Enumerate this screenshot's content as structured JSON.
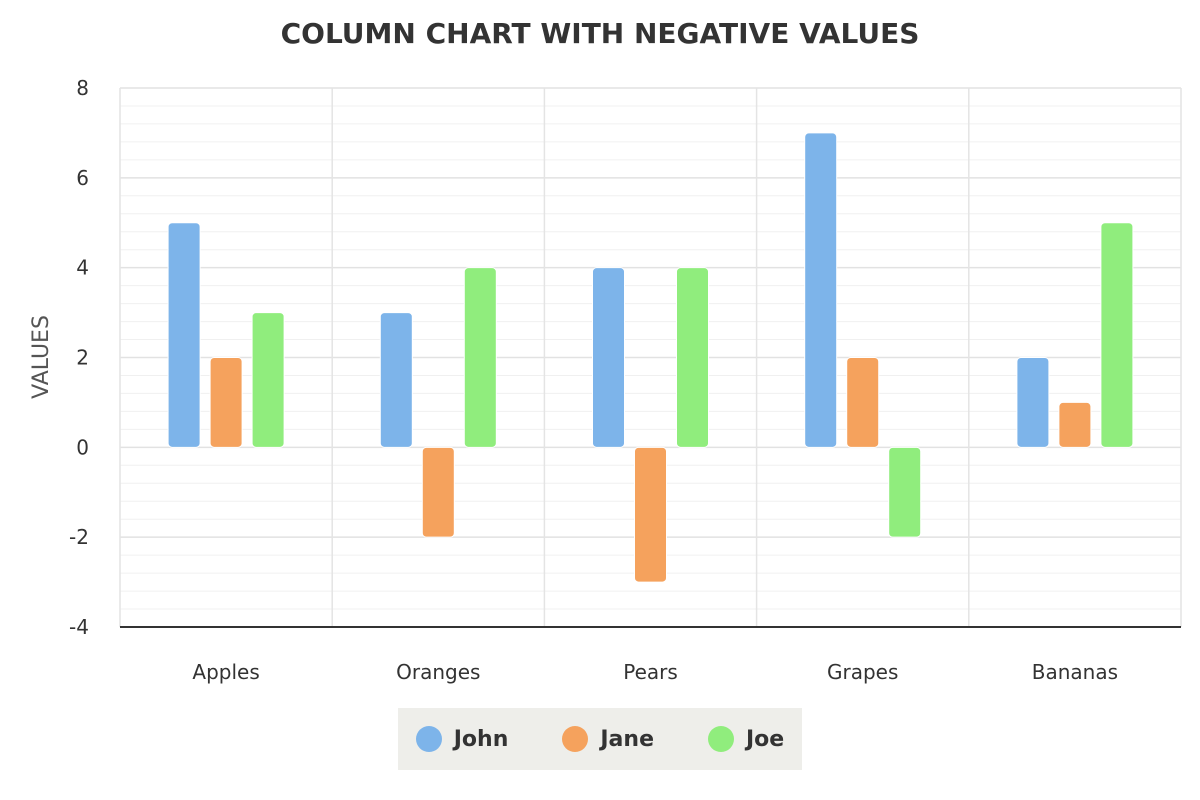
{
  "chart_data": {
    "type": "bar",
    "title": "COLUMN CHART WITH NEGATIVE VALUES",
    "xlabel": "",
    "ylabel": "VALUES",
    "ylim": [
      -4,
      8
    ],
    "yticks": [
      8,
      6,
      4,
      2,
      0,
      -2,
      -4
    ],
    "grid": true,
    "legend": "bottom",
    "categories": [
      "Apples",
      "Oranges",
      "Pears",
      "Grapes",
      "Bananas"
    ],
    "series": [
      {
        "name": "John",
        "color": "#7db4ea",
        "values": [
          5,
          3,
          4,
          7,
          2
        ]
      },
      {
        "name": "Jane",
        "color": "#f5a25d",
        "values": [
          2,
          -2,
          -3,
          2,
          1
        ]
      },
      {
        "name": "Joe",
        "color": "#90ed7d",
        "values": [
          3,
          4,
          4,
          -2,
          5
        ]
      }
    ]
  }
}
